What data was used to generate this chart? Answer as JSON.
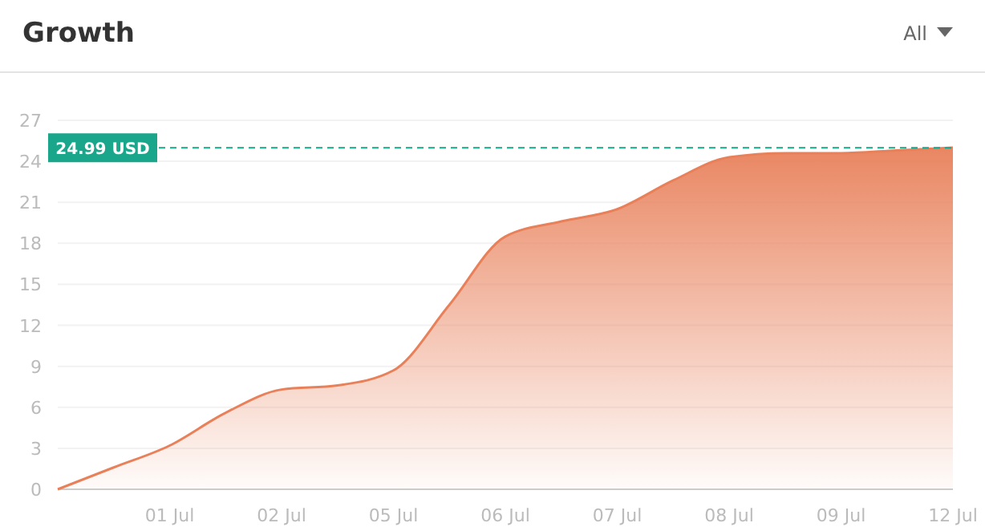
{
  "chart_data": {
    "type": "area",
    "title": "Growth",
    "annotations": [
      "All"
    ],
    "categories": [
      null,
      null,
      "01 Jul",
      null,
      "02 Jul",
      null,
      "05 Jul",
      null,
      "06 Jul",
      null,
      "07 Jul",
      null,
      "08 Jul",
      null,
      "09 Jul",
      null,
      "12 Jul"
    ],
    "series": [
      {
        "color": "#e8805a",
        "values": [
          0,
          1.6,
          3.2,
          5.6,
          7.3,
          7.6,
          8.7,
          13.5,
          18.5,
          19.6,
          20.5,
          22.6,
          24.3,
          24.6,
          24.6,
          24.8,
          25.0
        ]
      }
    ],
    "ylim": [
      0,
      27
    ],
    "yticks": [
      0,
      3,
      6,
      9,
      12,
      15,
      18,
      21,
      24,
      27
    ],
    "grid": "y",
    "ref_lines": [
      {
        "axis": "y",
        "value": 24.99,
        "label": "24.99 USD",
        "color": "#1aa68a",
        "line_style": "dashed"
      }
    ]
  }
}
